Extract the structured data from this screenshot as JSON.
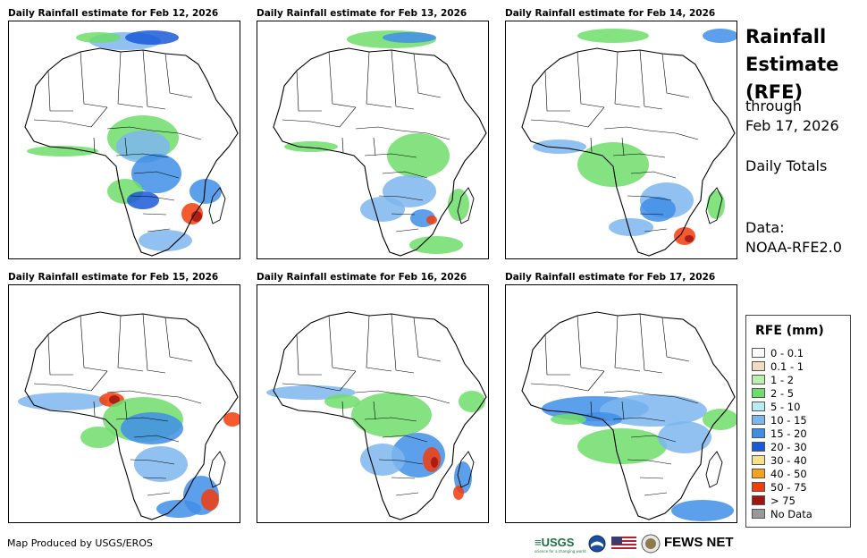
{
  "panels": [
    {
      "title": "Daily Rainfall estimate for Feb 12, 2026"
    },
    {
      "title": "Daily Rainfall estimate for Feb 13, 2026"
    },
    {
      "title": "Daily Rainfall estimate for Feb 14, 2026"
    },
    {
      "title": "Daily Rainfall estimate for Feb 15, 2026"
    },
    {
      "title": "Daily Rainfall estimate for Feb 16, 2026"
    },
    {
      "title": "Daily Rainfall estimate for Feb 17, 2026"
    }
  ],
  "sidebar": {
    "title_line1": "Rainfall",
    "title_line2": "Estimate",
    "title_line3": "(RFE)",
    "through_label": "through",
    "through_date": "Feb 17, 2026",
    "totals_label": "Daily Totals",
    "data_label": "Data:",
    "data_source": "NOAA-RFE2.0"
  },
  "legend": {
    "title": "RFE (mm)",
    "items": [
      {
        "label": "0 - 0.1",
        "color": "#ffffff"
      },
      {
        "label": "0.1 - 1",
        "color": "#f2dcc0"
      },
      {
        "label": "1 - 2",
        "color": "#b9f0b0"
      },
      {
        "label": "2 - 5",
        "color": "#6fdd6a"
      },
      {
        "label": "5 - 10",
        "color": "#b7ecf4"
      },
      {
        "label": "10 - 15",
        "color": "#7db6ee"
      },
      {
        "label": "15 - 20",
        "color": "#3f8ee6"
      },
      {
        "label": "20 - 30",
        "color": "#1a5ad8"
      },
      {
        "label": "30 - 40",
        "color": "#f7e08c"
      },
      {
        "label": "40 - 50",
        "color": "#f7a21b"
      },
      {
        "label": "50 - 75",
        "color": "#f23c0c"
      },
      {
        "label": "> 75",
        "color": "#a0150f"
      },
      {
        "label": "No Data",
        "color": "#999999"
      }
    ]
  },
  "footer": {
    "credit": "Map Produced by USGS/EROS",
    "usgs_logo": "≡USGS",
    "usgs_tagline": "science for a changing world",
    "fews_logo": "FEWS NET"
  }
}
